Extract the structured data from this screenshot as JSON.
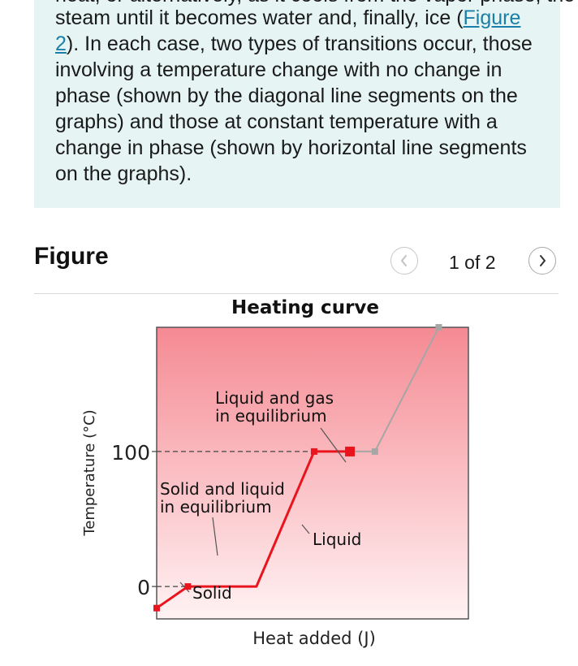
{
  "passage": {
    "partial_line": "heat, or alternatively, as it cools from the vapor phase, the",
    "before_link": "steam until it becomes water and, finally, ice (",
    "link": "Figure 2",
    "after_link": "). In each case, two types of transitions occur, those involving a temperature change with no change in phase (shown by the diagonal line segments on the graphs) and those at constant temperature with a change in phase (shown by horizontal line segments on the graphs)."
  },
  "figure": {
    "heading": "Figure",
    "pager": "1 of 2",
    "prev_icon": "chevron-left-icon",
    "next_icon": "chevron-right-icon"
  },
  "colors": {
    "accent_link": "#1a7fa8",
    "text_box_bg": "#e6f5f4",
    "curve_red": "#e8141e",
    "curve_gray": "#a6a6a6",
    "plot_top": "#f58a93",
    "plot_bottom": "#fff2f3"
  },
  "chart_data": {
    "type": "line",
    "title": "Heating curve",
    "xlabel": "Heat added (J)",
    "ylabel": "Temperature (°C)",
    "ytick_labels": [
      {
        "value": 100,
        "label": "100"
      },
      {
        "value": 0,
        "label": "0"
      }
    ],
    "ylim": [
      -24,
      192
    ],
    "xlim": [
      0,
      10
    ],
    "grid": false,
    "series": [
      {
        "color": "#e8141e",
        "points": [
          {
            "x": 0.0,
            "y": -16
          },
          {
            "x": 1.0,
            "y": 0
          },
          {
            "x": 3.2,
            "y": 0
          },
          {
            "x": 5.05,
            "y": 100
          },
          {
            "x": 6.2,
            "y": 100
          }
        ],
        "markers": [
          1,
          3
        ]
      },
      {
        "color": "#a6a6a6",
        "points": [
          {
            "x": 6.2,
            "y": 100
          },
          {
            "x": 7.0,
            "y": 100
          },
          {
            "x": 9.05,
            "y": 192
          }
        ],
        "markers": [
          1,
          2
        ]
      }
    ],
    "reference_lines": [
      {
        "y": 100,
        "style": "dashed"
      },
      {
        "y": 0,
        "style": "dashed"
      }
    ],
    "annotations": [
      {
        "text": "Liquid and gas\nin equilibrium",
        "x": 5.7,
        "y": 100
      },
      {
        "text": "Solid and liquid\nin equilibrium",
        "x": 1.8,
        "y": 0
      },
      {
        "text": "Liquid",
        "x": 4.3,
        "y": 50
      },
      {
        "text": "Solid",
        "x": 0.5,
        "y": -8
      }
    ]
  }
}
